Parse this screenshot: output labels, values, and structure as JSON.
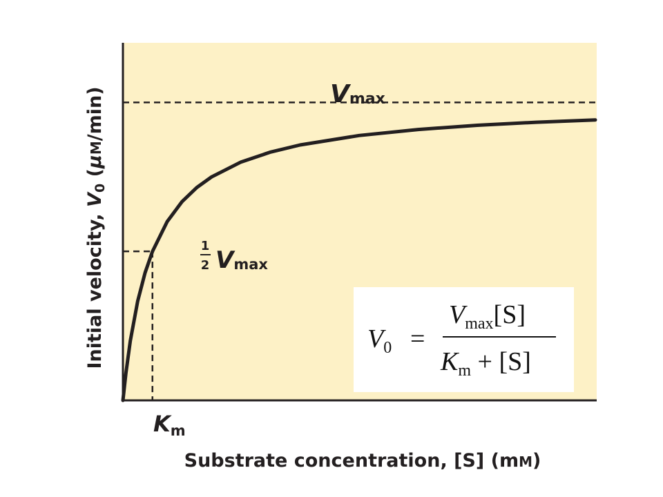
{
  "chart_data": {
    "type": "line",
    "title": "",
    "xlabel": "Substrate concentration, [S] (mM)",
    "xlabel_parts": {
      "main": "Substrate concentration, [S] (m",
      "unit_small": "M",
      "close": ")"
    },
    "ylabel": "Initial velocity, V0 (μM/min)",
    "ylabel_parts": {
      "pre": "Initial velocity, ",
      "var": "V",
      "sub": "0",
      "unit_open": " (",
      "mu": "μ",
      "unit_small": "M",
      "unit_rest": "/min)"
    },
    "xlim": [
      0,
      16
    ],
    "ylim": [
      0,
      1.2
    ],
    "grid": false,
    "series": [
      {
        "x": [
          0,
          0.1,
          0.25,
          0.5,
          0.75,
          1,
          1.5,
          2,
          2.5,
          3,
          4,
          5,
          6,
          8,
          10,
          12,
          14,
          16
        ],
        "y": [
          0,
          0.0909,
          0.2,
          0.3333,
          0.4286,
          0.5,
          0.6,
          0.6667,
          0.7143,
          0.75,
          0.8,
          0.8333,
          0.8571,
          0.8889,
          0.9091,
          0.9231,
          0.9333,
          0.9412
        ]
      }
    ],
    "annotations": {
      "vmax": {
        "value": 1.0,
        "label_var": "V",
        "label_sub": "max"
      },
      "half_vmax": {
        "value": 0.5,
        "frac_num": "1",
        "frac_den": "2",
        "label_var": "V",
        "label_sub": "max"
      },
      "km": {
        "value": 1.0,
        "label_var": "K",
        "label_sub": "m"
      }
    },
    "equation": {
      "lhs_var": "V",
      "lhs_sub": "0",
      "equals": "=",
      "num_var": "V",
      "num_sub": "max",
      "num_rest": "[S]",
      "den_var": "K",
      "den_sub": "m",
      "den_rest": " + [S]"
    }
  },
  "colors": {
    "plot_bg": "#fdf1c6",
    "curve": "#231f20",
    "box_bg": "#ffffff"
  }
}
